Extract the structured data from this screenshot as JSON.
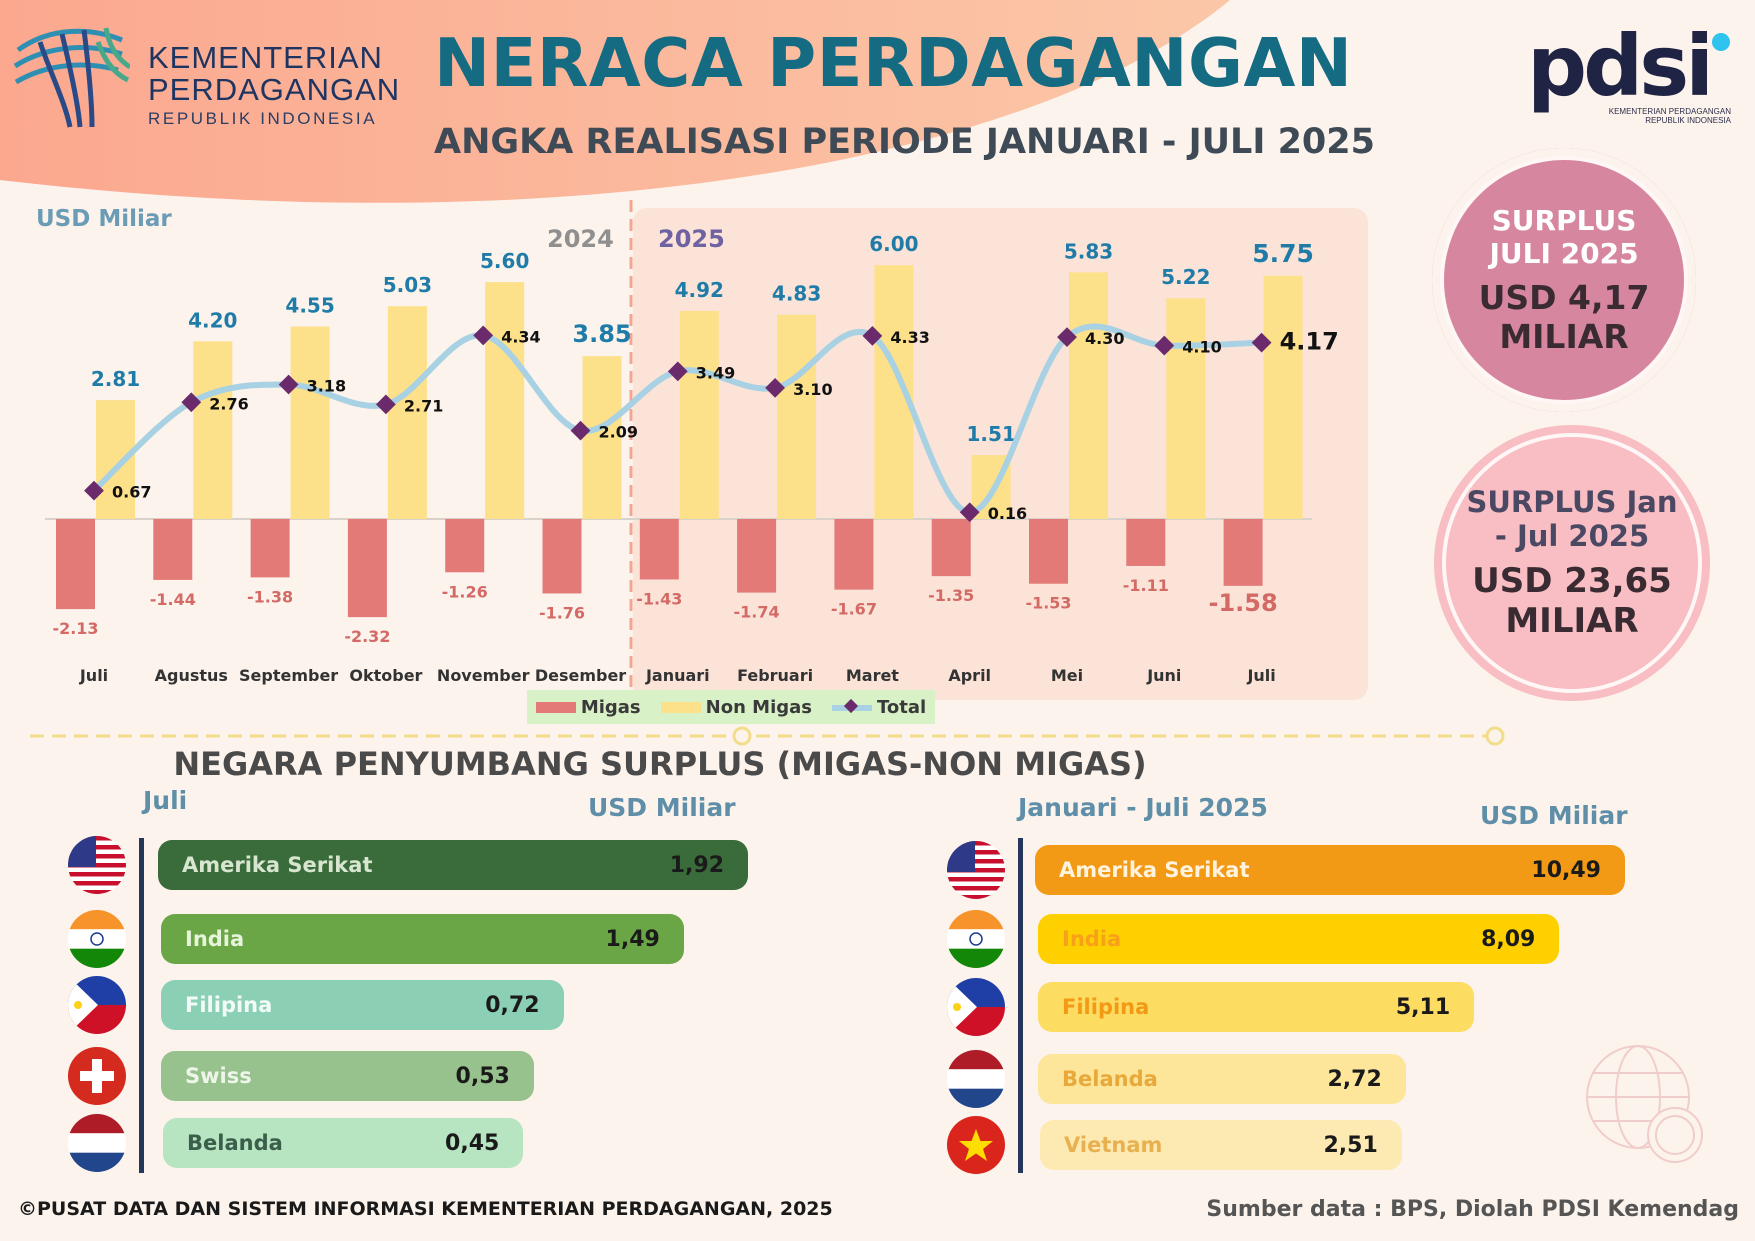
{
  "header": {
    "org_line1": "KEMENTERIAN",
    "org_line2": "PERDAGANGAN",
    "org_line3": "REPUBLIK INDONESIA",
    "title": "NERACA PERDAGANGAN",
    "subtitle": "ANGKA REALISASI PERIODE JANUARI - JULI 2025",
    "pdsi_logo": "pdsi",
    "pdsi_sub1": "KEMENTERIAN PERDAGANGAN",
    "pdsi_sub2": "REPUBLIK INDONESIA"
  },
  "badges": {
    "july": {
      "label": "SURPLUS JULI 2025",
      "value": "USD 4,17 MILIAR"
    },
    "ytd": {
      "label": "SURPLUS Jan - Jul 2025",
      "value": "USD 23,65 MILIAR"
    }
  },
  "chart_data": {
    "type": "bar",
    "ylabel": "USD Miliar",
    "year_labels": [
      "2024",
      "2025"
    ],
    "categories": [
      "Juli",
      "Agustus",
      "September",
      "Oktober",
      "November",
      "Desember",
      "Januari",
      "Februari",
      "Maret",
      "April",
      "Mei",
      "Juni",
      "Juli"
    ],
    "series": [
      {
        "name": "Migas",
        "type": "bar",
        "color": "#e47a78",
        "values": [
          -2.13,
          -1.44,
          -1.38,
          -2.32,
          -1.26,
          -1.76,
          -1.43,
          -1.74,
          -1.67,
          -1.35,
          -1.53,
          -1.11,
          -1.58
        ],
        "labels": [
          "-2.13",
          "-1.44",
          "-1.38",
          "-2.32",
          "-1.26",
          "-1.76",
          "-1.43",
          "-1.74",
          "-1.67",
          "-1.35",
          "-1.53",
          "-1.11",
          "-1.58"
        ]
      },
      {
        "name": "Non Migas",
        "type": "bar",
        "color": "#fde08a",
        "values": [
          2.81,
          4.2,
          4.55,
          5.03,
          5.6,
          3.85,
          4.92,
          4.83,
          6.0,
          1.51,
          5.83,
          5.22,
          5.75
        ],
        "labels": [
          "2.81",
          "4.20",
          "4.55",
          "5.03",
          "5.60",
          "3.85",
          "4.92",
          "4.83",
          "6.00",
          "1.51",
          "5.83",
          "5.22",
          "5.75"
        ]
      },
      {
        "name": "Total",
        "type": "line",
        "color": "#a8d1e3",
        "values": [
          0.67,
          2.76,
          3.18,
          2.71,
          4.34,
          2.09,
          3.49,
          3.1,
          4.33,
          0.16,
          4.3,
          4.1,
          4.17
        ],
        "labels": [
          "0.67",
          "2.76",
          "3.18",
          "2.71",
          "4.34",
          "2.09",
          "3.49",
          "3.10",
          "4.33",
          "0.16",
          "4.30",
          "4.10",
          "4.17"
        ]
      }
    ],
    "ylim": [
      -2.6,
      6.3
    ],
    "legend_position": "bottom",
    "grid": false
  },
  "section_title": "NEGARA PENYUMBANG SURPLUS (MIGAS-NON MIGAS)",
  "july_panel": {
    "label": "Juli",
    "unit": "USD Miliar",
    "max": 1.92,
    "items": [
      {
        "name": "Amerika Serikat",
        "value": 1.92,
        "value_label": "1,92",
        "color": "#3a6b3b",
        "text_color": "#d8e6d0",
        "flag": "us"
      },
      {
        "name": "India",
        "value": 1.49,
        "value_label": "1,49",
        "color": "#6aa646",
        "text_color": "#e7f4dc",
        "flag": "in"
      },
      {
        "name": "Filipina",
        "value": 0.72,
        "value_label": "0,72",
        "color": "#8bd0b4",
        "text_color": "#f2fbf7",
        "flag": "ph"
      },
      {
        "name": "Swiss",
        "value": 0.53,
        "value_label": "0,53",
        "color": "#97c18d",
        "text_color": "#eef6ea",
        "flag": "ch"
      },
      {
        "name": "Belanda",
        "value": 0.45,
        "value_label": "0,45",
        "color": "#b7e4c1",
        "text_color": "#3b5e4a",
        "flag": "nl"
      }
    ]
  },
  "ytd_panel": {
    "label": "Januari - Juli 2025",
    "unit": "USD Miliar",
    "max": 10.49,
    "items": [
      {
        "name": "Amerika Serikat",
        "value": 10.49,
        "value_label": "10,49",
        "color": "#f29a16",
        "text_color": "#fff3dd",
        "flag": "us"
      },
      {
        "name": "India",
        "value": 8.09,
        "value_label": "8,09",
        "color": "#fed000",
        "text_color": "#f7a01a",
        "flag": "in"
      },
      {
        "name": "Filipina",
        "value": 5.11,
        "value_label": "5,11",
        "color": "#fddc62",
        "text_color": "#f29a16",
        "flag": "ph"
      },
      {
        "name": "Belanda",
        "value": 2.72,
        "value_label": "2,72",
        "color": "#fde59a",
        "text_color": "#e9a93a",
        "flag": "nl"
      },
      {
        "name": "Vietnam",
        "value": 2.51,
        "value_label": "2,51",
        "color": "#fdeab2",
        "text_color": "#e9b050",
        "flag": "vn"
      }
    ]
  },
  "footer": {
    "copyright": "©PUSAT DATA DAN SISTEM INFORMASI KEMENTERIAN PERDAGANGAN, 2025",
    "source": "Sumber data : BPS, Diolah PDSI Kemendag"
  }
}
